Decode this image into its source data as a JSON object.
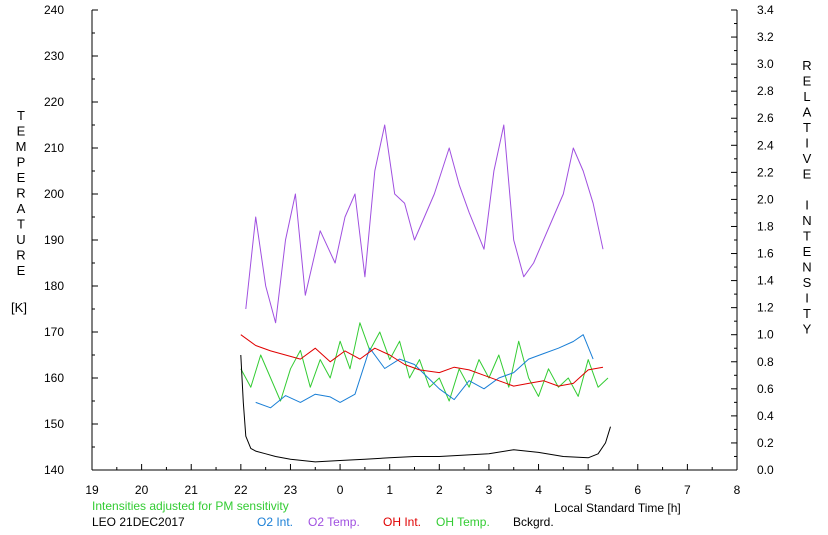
{
  "chart_data": {
    "type": "line",
    "station_label": "LEO 21DEC2017",
    "note": "Intensities adjusted for PM sensitivity",
    "xlabel": "Local Standard Time [h]",
    "ylabel_left_letters": [
      "T",
      "E",
      "M",
      "P",
      "E",
      "R",
      "A",
      "T",
      "U",
      "R",
      "E"
    ],
    "ylabel_left_unit": "[K]",
    "ylabel_right_letters": [
      "R",
      "E",
      "L",
      "A",
      "T",
      "I",
      "V",
      "E",
      "",
      "I",
      "N",
      "T",
      "E",
      "N",
      "S",
      "I",
      "T",
      "Y"
    ],
    "x_tick_labels": [
      "19",
      "20",
      "21",
      "22",
      "23",
      "0",
      "1",
      "2",
      "3",
      "4",
      "5",
      "6",
      "7",
      "8"
    ],
    "xlim": [
      19,
      32
    ],
    "ylim_left": [
      140,
      240
    ],
    "y_left_tick_labels": [
      "140",
      "150",
      "160",
      "170",
      "180",
      "190",
      "200",
      "210",
      "220",
      "230",
      "240"
    ],
    "ylim_right": [
      0,
      3.4
    ],
    "y_right_tick_labels": [
      "0.0",
      "0.2",
      "0.4",
      "0.6",
      "0.8",
      "1.0",
      "1.2",
      "1.4",
      "1.6",
      "1.8",
      "2.0",
      "2.2",
      "2.4",
      "2.6",
      "2.8",
      "3.0",
      "3.2",
      "3.4"
    ],
    "grid": false,
    "colors": {
      "O2 Int.": "#1a7fd6",
      "O2 Temp.": "#a050e0",
      "OH Int.": "#e00000",
      "OH Temp.": "#33cc33",
      "Bckgrd.": "#000000",
      "note": "#33cc33"
    },
    "series": [
      {
        "name": "O2 Int.",
        "axis": "right",
        "x": [
          22.3,
          22.6,
          22.9,
          23.2,
          23.5,
          23.8,
          24.0,
          24.3,
          24.6,
          24.9,
          25.2,
          25.5,
          26.0,
          26.3,
          26.6,
          26.9,
          27.2,
          27.5,
          27.8,
          28.1,
          28.4,
          28.7,
          28.9,
          29.1
        ],
        "y": [
          0.5,
          0.46,
          0.55,
          0.5,
          0.56,
          0.54,
          0.5,
          0.56,
          0.9,
          0.75,
          0.82,
          0.78,
          0.6,
          0.52,
          0.66,
          0.6,
          0.68,
          0.72,
          0.82,
          0.86,
          0.9,
          0.95,
          1.0,
          0.82
        ]
      },
      {
        "name": "O2 Temp.",
        "axis": "left",
        "x": [
          22.1,
          22.3,
          22.5,
          22.7,
          22.9,
          23.1,
          23.3,
          23.6,
          23.9,
          24.1,
          24.3,
          24.5,
          24.7,
          24.9,
          25.1,
          25.3,
          25.5,
          25.9,
          26.2,
          26.4,
          26.6,
          26.9,
          27.1,
          27.3,
          27.5,
          27.7,
          27.9,
          28.3,
          28.5,
          28.7,
          28.9,
          29.1,
          29.3
        ],
        "y": [
          175,
          195,
          180,
          172,
          190,
          200,
          178,
          192,
          185,
          195,
          200,
          182,
          205,
          215,
          200,
          198,
          190,
          200,
          210,
          202,
          196,
          188,
          205,
          215,
          190,
          182,
          185,
          195,
          200,
          210,
          205,
          198,
          188
        ]
      },
      {
        "name": "OH Int.",
        "axis": "right",
        "x": [
          22.0,
          22.3,
          22.6,
          22.9,
          23.2,
          23.5,
          23.8,
          24.1,
          24.4,
          24.7,
          25.0,
          25.3,
          25.6,
          26.0,
          26.3,
          26.6,
          26.9,
          27.2,
          27.5,
          27.8,
          28.1,
          28.4,
          28.7,
          29.0,
          29.3
        ],
        "y": [
          1.0,
          0.92,
          0.88,
          0.85,
          0.82,
          0.9,
          0.8,
          0.88,
          0.82,
          0.9,
          0.85,
          0.78,
          0.74,
          0.72,
          0.76,
          0.74,
          0.7,
          0.66,
          0.62,
          0.64,
          0.66,
          0.62,
          0.64,
          0.74,
          0.76
        ]
      },
      {
        "name": "OH Temp.",
        "axis": "left",
        "x": [
          22.0,
          22.2,
          22.4,
          22.6,
          22.8,
          23.0,
          23.2,
          23.4,
          23.6,
          23.8,
          24.0,
          24.2,
          24.4,
          24.6,
          24.8,
          25.0,
          25.2,
          25.4,
          25.6,
          25.8,
          26.0,
          26.2,
          26.4,
          26.6,
          26.8,
          27.0,
          27.2,
          27.4,
          27.6,
          27.8,
          28.0,
          28.2,
          28.4,
          28.6,
          28.8,
          29.0,
          29.2,
          29.4
        ],
        "y": [
          162,
          158,
          165,
          160,
          155,
          162,
          166,
          158,
          164,
          160,
          168,
          162,
          172,
          166,
          170,
          164,
          168,
          160,
          164,
          158,
          160,
          155,
          162,
          158,
          164,
          160,
          165,
          158,
          168,
          160,
          156,
          162,
          158,
          160,
          156,
          164,
          158,
          160
        ]
      },
      {
        "name": "Bckgrd.",
        "axis": "right",
        "x": [
          22.0,
          22.05,
          22.1,
          22.2,
          22.3,
          22.5,
          22.7,
          23.0,
          23.5,
          24.0,
          24.5,
          25.0,
          25.5,
          26.0,
          26.5,
          27.0,
          27.5,
          28.0,
          28.5,
          29.0,
          29.2,
          29.35,
          29.45
        ],
        "y": [
          0.85,
          0.5,
          0.25,
          0.16,
          0.14,
          0.12,
          0.1,
          0.08,
          0.06,
          0.07,
          0.08,
          0.09,
          0.1,
          0.1,
          0.11,
          0.12,
          0.15,
          0.13,
          0.1,
          0.09,
          0.12,
          0.2,
          0.32
        ]
      }
    ]
  }
}
